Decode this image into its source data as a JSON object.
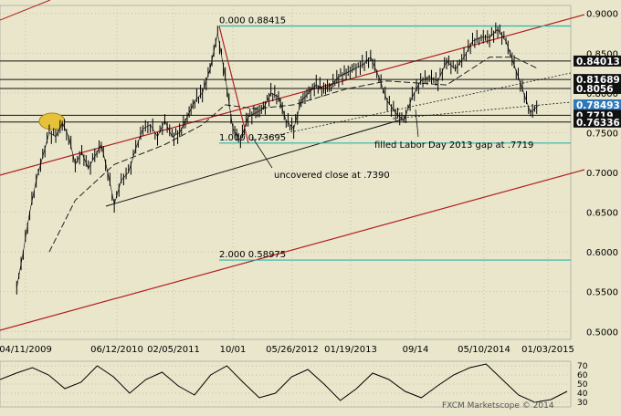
{
  "colors": {
    "background": "#e9e6cc",
    "price_line": "#000000",
    "fib_line": "#2bb5a8",
    "trend_red": "#b22020",
    "level_box": "#000000",
    "current_box": "#2f78b8",
    "highlight_ellipse": "#e6c23a"
  },
  "chart_data": {
    "type": "line",
    "title": "",
    "xlabel": "",
    "ylabel": "",
    "ylim": [
      0.49,
      0.91
    ],
    "x_ticks": [
      "04/11/2009",
      "06/12/2010",
      "02/05/2011",
      "10/01",
      "05/26/2012",
      "01/19/2013",
      "09/14",
      "05/10/2014",
      "01/03/2015"
    ],
    "y_ticks": [
      "0.9000",
      "0.8500",
      "0.8000",
      "0.7500",
      "0.7000",
      "0.6500",
      "0.6000",
      "0.5500",
      "0.5000"
    ],
    "price_boxes": [
      {
        "label": "0.84013",
        "value": 0.84013,
        "style": "dark"
      },
      {
        "label": "0.81689",
        "value": 0.81689,
        "style": "dark"
      },
      {
        "label": "0.8056",
        "value": 0.8056,
        "style": "dark"
      },
      {
        "label": "0.78493",
        "value": 0.78493,
        "style": "current"
      },
      {
        "label": "0.7719",
        "value": 0.7719,
        "style": "dark"
      },
      {
        "label": "0.76336",
        "value": 0.76336,
        "style": "dark"
      }
    ],
    "fib_levels": [
      {
        "ratio": "0.000",
        "value": 0.88415
      },
      {
        "ratio": "1.000",
        "value": 0.73695
      },
      {
        "ratio": "2.000",
        "value": 0.58975
      }
    ],
    "horizontal_levels": [
      0.84013,
      0.81689,
      0.8056,
      0.7719,
      0.76336
    ],
    "annotations": {
      "gap": "filled Labor Day 2013 gap at .7719",
      "close": "uncovered close at .7390"
    },
    "series": [
      {
        "type": "price",
        "points": [
          [
            "2009-03",
            0.555
          ],
          [
            "2009-04",
            0.6
          ],
          [
            "2009-05",
            0.65
          ],
          [
            "2009-06",
            0.69
          ],
          [
            "2009-07",
            0.72
          ],
          [
            "2009-08",
            0.75
          ],
          [
            "2009-09",
            0.745
          ],
          [
            "2009-10",
            0.762
          ],
          [
            "2009-11",
            0.745
          ],
          [
            "2009-12",
            0.71
          ],
          [
            "2010-01",
            0.725
          ],
          [
            "2010-02",
            0.705
          ],
          [
            "2010-03",
            0.72
          ],
          [
            "2010-04",
            0.735
          ],
          [
            "2010-05",
            0.7
          ],
          [
            "2010-06",
            0.66
          ],
          [
            "2010-07",
            0.69
          ],
          [
            "2010-08",
            0.7
          ],
          [
            "2010-09",
            0.73
          ],
          [
            "2010-10",
            0.755
          ],
          [
            "2010-11",
            0.76
          ],
          [
            "2010-12",
            0.745
          ],
          [
            "2011-01",
            0.765
          ],
          [
            "2011-02",
            0.745
          ],
          [
            "2011-03",
            0.75
          ],
          [
            "2011-04",
            0.77
          ],
          [
            "2011-05",
            0.79
          ],
          [
            "2011-06",
            0.8
          ],
          [
            "2011-07",
            0.83
          ],
          [
            "2011-08",
            0.875
          ],
          [
            "2011-09",
            0.82
          ],
          [
            "2011-10",
            0.755
          ],
          [
            "2011-11",
            0.74
          ],
          [
            "2011-12",
            0.77
          ],
          [
            "2012-01",
            0.775
          ],
          [
            "2012-02",
            0.78
          ],
          [
            "2012-03",
            0.8
          ],
          [
            "2012-04",
            0.795
          ],
          [
            "2012-05",
            0.765
          ],
          [
            "2012-06",
            0.755
          ],
          [
            "2012-07",
            0.79
          ],
          [
            "2012-08",
            0.8
          ],
          [
            "2012-09",
            0.81
          ],
          [
            "2012-10",
            0.805
          ],
          [
            "2012-11",
            0.81
          ],
          [
            "2012-12",
            0.82
          ],
          [
            "2013-01",
            0.825
          ],
          [
            "2013-02",
            0.83
          ],
          [
            "2013-03",
            0.835
          ],
          [
            "2013-04",
            0.845
          ],
          [
            "2013-05",
            0.82
          ],
          [
            "2013-06",
            0.79
          ],
          [
            "2013-07",
            0.775
          ],
          [
            "2013-08",
            0.765
          ],
          [
            "2013-09",
            0.795
          ],
          [
            "2013-10",
            0.815
          ],
          [
            "2013-11",
            0.82
          ],
          [
            "2013-12",
            0.815
          ],
          [
            "2014-01",
            0.84
          ],
          [
            "2014-02",
            0.83
          ],
          [
            "2014-03",
            0.845
          ],
          [
            "2014-04",
            0.865
          ],
          [
            "2014-05",
            0.87
          ],
          [
            "2014-06",
            0.87
          ],
          [
            "2014-07",
            0.88
          ],
          [
            "2014-08",
            0.865
          ],
          [
            "2014-09",
            0.835
          ],
          [
            "2014-10",
            0.805
          ],
          [
            "2014-11",
            0.775
          ],
          [
            "2014-12",
            0.785
          ]
        ]
      },
      {
        "type": "moving-average",
        "points": [
          [
            "2009-08",
            0.6
          ],
          [
            "2009-12",
            0.665
          ],
          [
            "2010-06",
            0.71
          ],
          [
            "2011-01",
            0.735
          ],
          [
            "2011-06",
            0.76
          ],
          [
            "2011-09",
            0.785
          ],
          [
            "2012-01",
            0.78
          ],
          [
            "2012-06",
            0.785
          ],
          [
            "2013-01",
            0.805
          ],
          [
            "2013-06",
            0.815
          ],
          [
            "2014-01",
            0.81
          ],
          [
            "2014-06",
            0.845
          ],
          [
            "2014-09",
            0.845
          ],
          [
            "2014-12",
            0.83
          ]
        ]
      }
    ],
    "rsi": {
      "y_ticks": [
        "70",
        "60",
        "50",
        "40",
        "30"
      ],
      "values": [
        55,
        62,
        68,
        60,
        45,
        52,
        70,
        58,
        40,
        55,
        63,
        48,
        38,
        60,
        70,
        52,
        35,
        40,
        58,
        66,
        50,
        32,
        45,
        62,
        55,
        42,
        35,
        48,
        60,
        68,
        72,
        55,
        38,
        30,
        33,
        42
      ]
    }
  },
  "footer": {
    "watermark": "FXCM Marketscope © 2014"
  }
}
